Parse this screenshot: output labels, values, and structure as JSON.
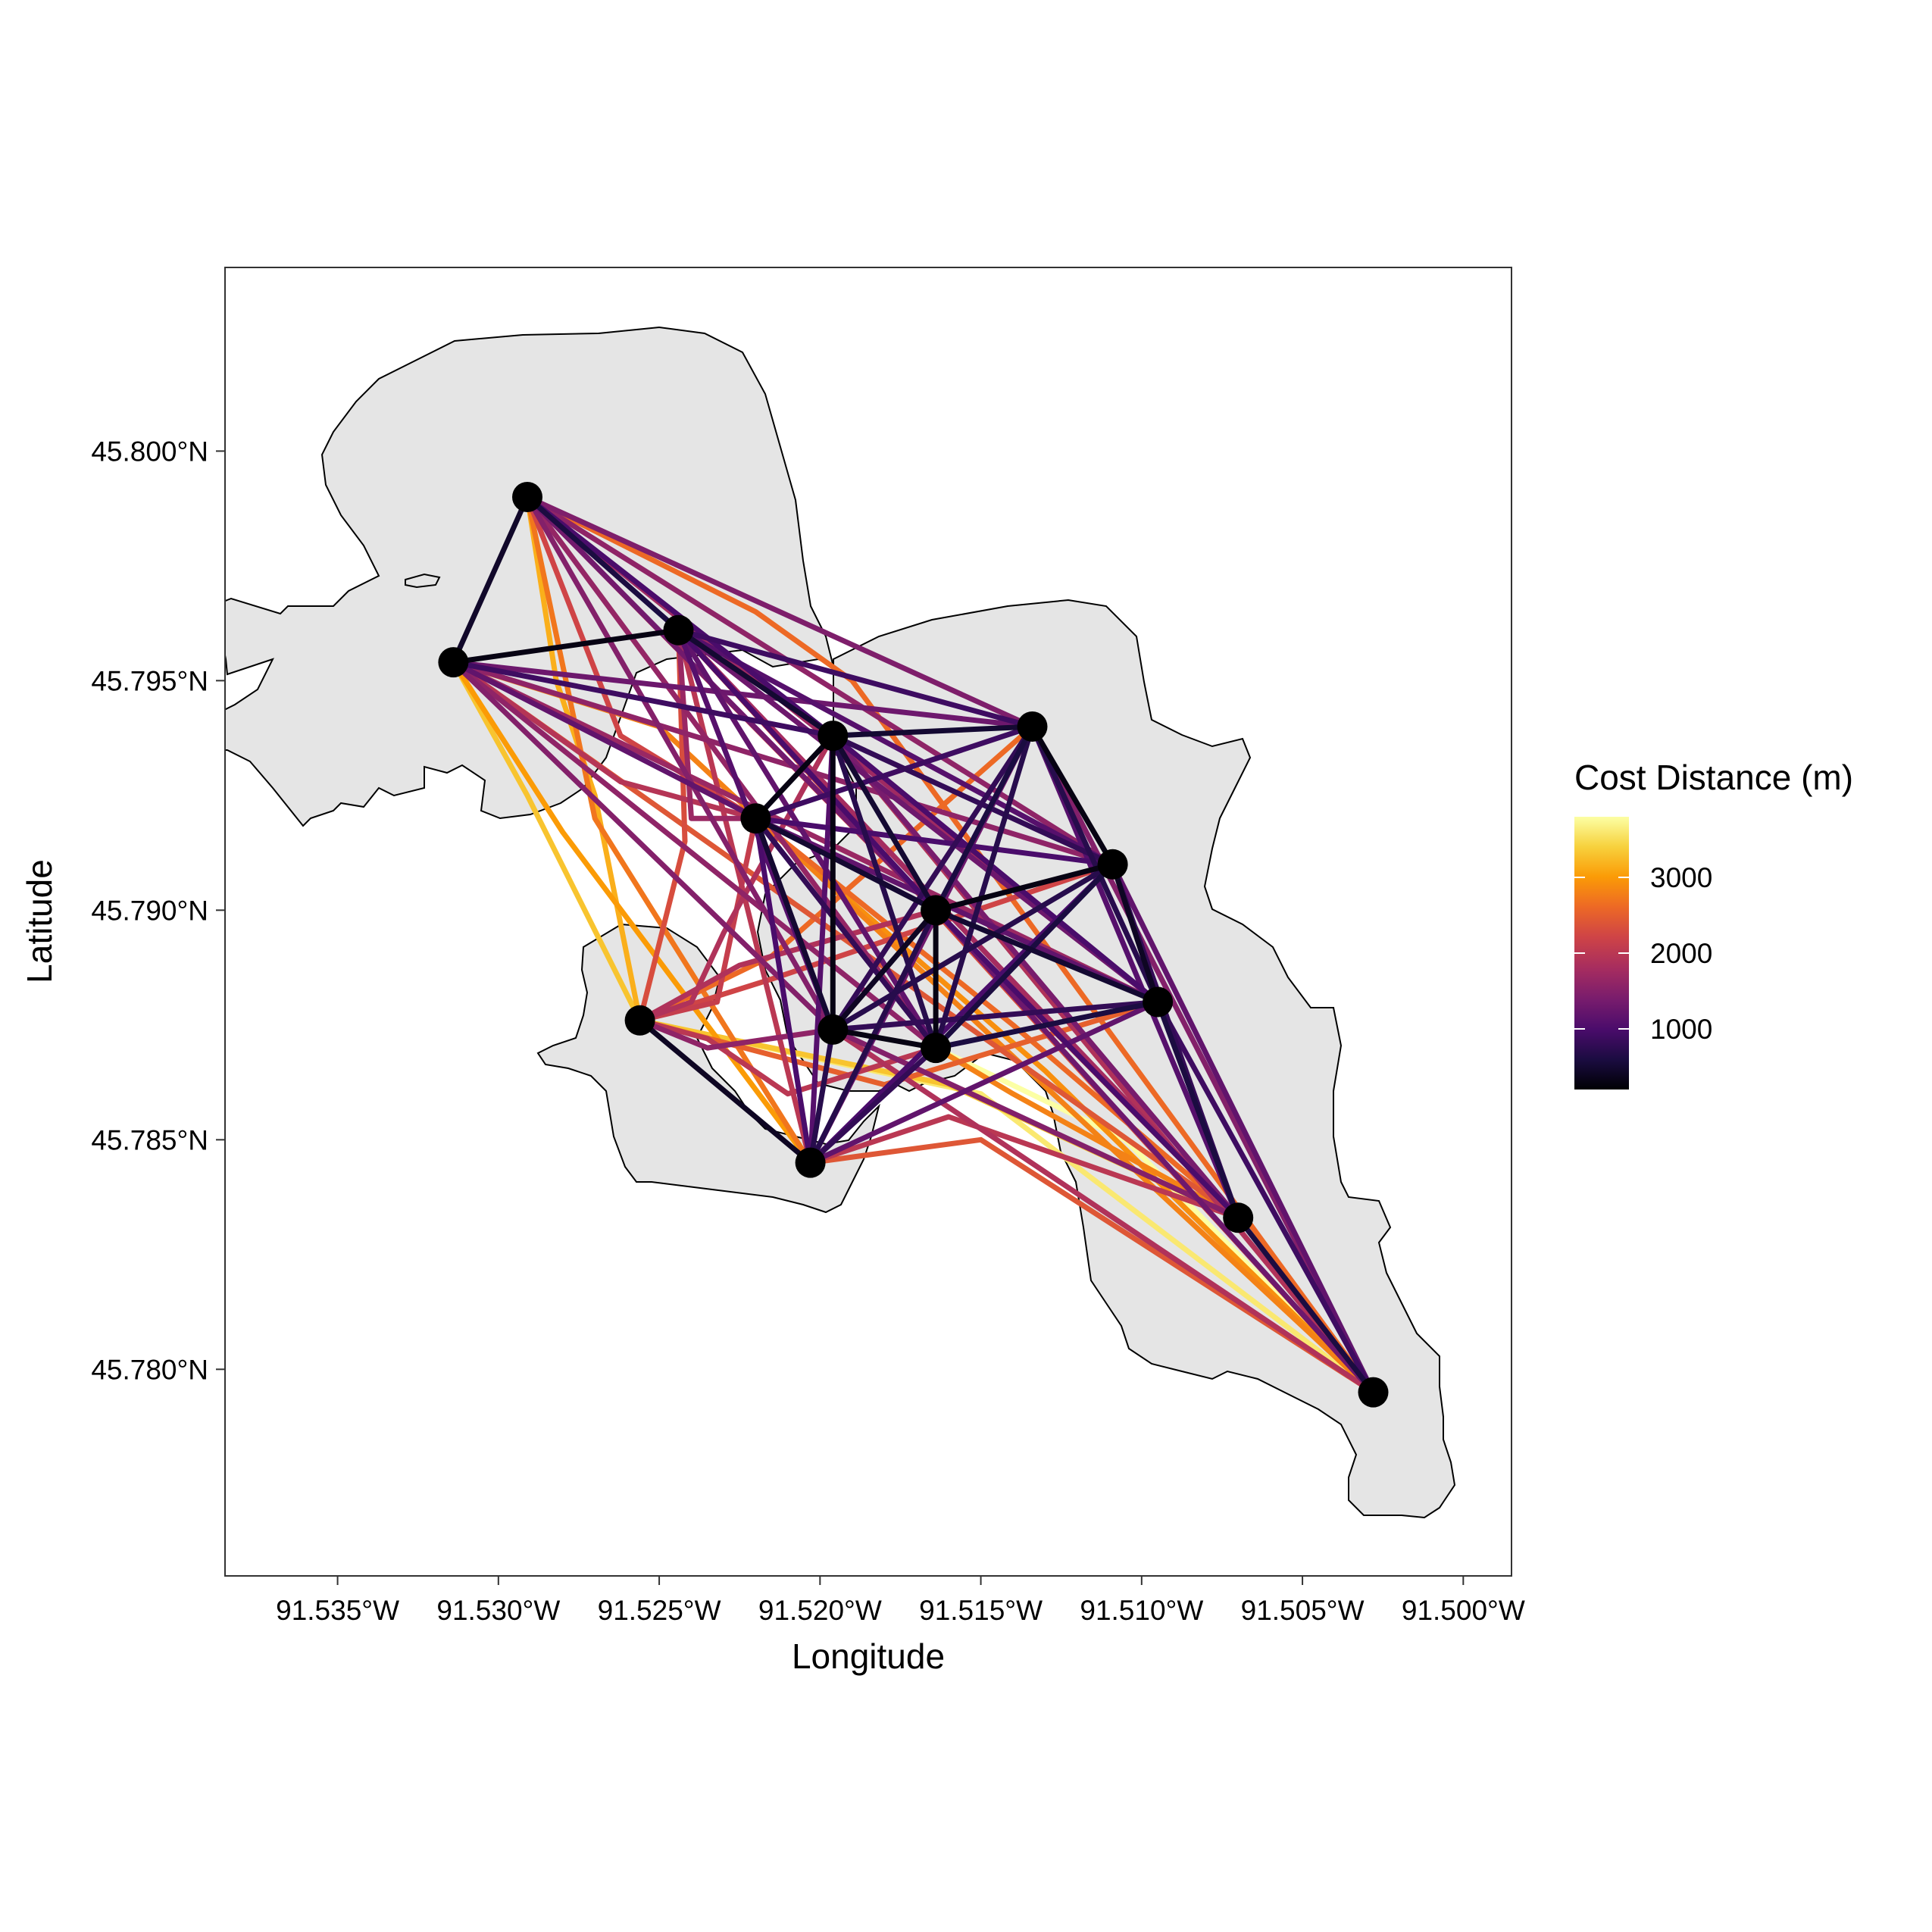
{
  "chart_data": {
    "type": "map",
    "xlabel": "Longitude",
    "ylabel": "Latitude",
    "xlim": [
      -91.5385,
      -91.4985
    ],
    "ylim": [
      45.7755,
      45.804
    ],
    "x_ticks": [
      -91.535,
      -91.53,
      -91.525,
      -91.52,
      -91.515,
      -91.51,
      -91.505,
      -91.5
    ],
    "x_tick_labels": [
      "91.535°W",
      "91.530°W",
      "91.525°W",
      "91.520°W",
      "91.515°W",
      "91.510°W",
      "91.505°W",
      "91.500°W"
    ],
    "y_ticks": [
      45.78,
      45.785,
      45.79,
      45.795,
      45.8
    ],
    "y_tick_labels": [
      "45.780°N",
      "45.785°N",
      "45.790°N",
      "45.795°N",
      "45.800°N"
    ],
    "legend": {
      "title": "Cost Distance (m)",
      "position": "right",
      "range": [
        200,
        3800
      ],
      "breaks": [
        1000,
        2000,
        3000
      ],
      "break_labels": [
        "1000",
        "2000",
        "3000"
      ]
    },
    "colors": {
      "land": "#e5e5e5",
      "panel_border": "#333333",
      "node": "#000000",
      "palette": [
        "#000004",
        "#1b0c41",
        "#4a0c6b",
        "#781c6d",
        "#a52c60",
        "#cf4446",
        "#ed6925",
        "#fb9b06",
        "#f7d13d",
        "#fcffa4"
      ]
    },
    "grid": false,
    "nodes": [
      {
        "lon": -91.5291,
        "lat": 45.799
      },
      {
        "lon": -91.5314,
        "lat": 45.7954
      },
      {
        "lon": -91.5244,
        "lat": 45.7961
      },
      {
        "lon": -91.5196,
        "lat": 45.7938
      },
      {
        "lon": -91.5134,
        "lat": 45.794
      },
      {
        "lon": -91.522,
        "lat": 45.792
      },
      {
        "lon": -91.5109,
        "lat": 45.791
      },
      {
        "lon": -91.5164,
        "lat": 45.79
      },
      {
        "lon": -91.5095,
        "lat": 45.788
      },
      {
        "lon": -91.5256,
        "lat": 45.7876
      },
      {
        "lon": -91.5196,
        "lat": 45.7874
      },
      {
        "lon": -91.5164,
        "lat": 45.787
      },
      {
        "lon": -91.5203,
        "lat": 45.7845
      },
      {
        "lon": -91.507,
        "lat": 45.7833
      },
      {
        "lon": -91.5028,
        "lat": 45.7795
      }
    ],
    "paths": [
      {
        "from": 0,
        "to": 1,
        "cost": 450
      },
      {
        "from": 0,
        "to": 2,
        "cost": 600
      },
      {
        "from": 0,
        "to": 3,
        "cost": 1000
      },
      {
        "from": 0,
        "to": 4,
        "cost": 1450
      },
      {
        "from": 0,
        "to": 5,
        "cost": 2200,
        "via": [
          [
            -91.5262,
            45.7938
          ]
        ]
      },
      {
        "from": 0,
        "to": 6,
        "cost": 1600
      },
      {
        "from": 0,
        "to": 7,
        "cost": 1350
      },
      {
        "from": 0,
        "to": 8,
        "cost": 1750
      },
      {
        "from": 0,
        "to": 9,
        "cost": 3150,
        "via": [
          [
            -91.5282,
            45.795
          ],
          [
            -91.527,
            45.7925
          ]
        ]
      },
      {
        "from": 0,
        "to": 10,
        "cost": 1500
      },
      {
        "from": 0,
        "to": 11,
        "cost": 1650
      },
      {
        "from": 0,
        "to": 12,
        "cost": 2700,
        "via": [
          [
            -91.527,
            45.792
          ]
        ]
      },
      {
        "from": 0,
        "to": 13,
        "cost": 2200
      },
      {
        "from": 0,
        "to": 14,
        "cost": 2600,
        "via": [
          [
            -91.522,
            45.7965
          ],
          [
            -91.519,
            45.795
          ]
        ]
      },
      {
        "from": 1,
        "to": 2,
        "cost": 300
      },
      {
        "from": 1,
        "to": 3,
        "cost": 900
      },
      {
        "from": 1,
        "to": 4,
        "cost": 1300
      },
      {
        "from": 1,
        "to": 5,
        "cost": 1950,
        "via": [
          [
            -91.5262,
            45.7928
          ]
        ]
      },
      {
        "from": 1,
        "to": 6,
        "cost": 1600
      },
      {
        "from": 1,
        "to": 7,
        "cost": 1200
      },
      {
        "from": 1,
        "to": 8,
        "cost": 1700
      },
      {
        "from": 1,
        "to": 9,
        "cost": 3300,
        "via": [
          [
            -91.5291,
            45.7925
          ]
        ]
      },
      {
        "from": 1,
        "to": 10,
        "cost": 1500
      },
      {
        "from": 1,
        "to": 11,
        "cost": 1600
      },
      {
        "from": 1,
        "to": 12,
        "cost": 3000,
        "via": [
          [
            -91.528,
            45.7917
          ]
        ]
      },
      {
        "from": 1,
        "to": 13,
        "cost": 2400
      },
      {
        "from": 1,
        "to": 14,
        "cost": 2800,
        "via": [
          [
            -91.525,
            45.794
          ]
        ]
      },
      {
        "from": 2,
        "to": 3,
        "cost": 500
      },
      {
        "from": 2,
        "to": 4,
        "cost": 900
      },
      {
        "from": 2,
        "to": 5,
        "cost": 1700,
        "via": [
          [
            -91.524,
            45.792
          ]
        ]
      },
      {
        "from": 2,
        "to": 6,
        "cost": 1100
      },
      {
        "from": 2,
        "to": 7,
        "cost": 1000
      },
      {
        "from": 2,
        "to": 8,
        "cost": 1300
      },
      {
        "from": 2,
        "to": 9,
        "cost": 2300,
        "via": [
          [
            -91.5242,
            45.7915
          ]
        ]
      },
      {
        "from": 2,
        "to": 10,
        "cost": 1100
      },
      {
        "from": 2,
        "to": 11,
        "cost": 1200
      },
      {
        "from": 2,
        "to": 12,
        "cost": 2000
      },
      {
        "from": 2,
        "to": 13,
        "cost": 1800
      },
      {
        "from": 2,
        "to": 14,
        "cost": 2300
      },
      {
        "from": 3,
        "to": 4,
        "cost": 500
      },
      {
        "from": 3,
        "to": 5,
        "cost": 300
      },
      {
        "from": 3,
        "to": 6,
        "cost": 800
      },
      {
        "from": 3,
        "to": 7,
        "cost": 500
      },
      {
        "from": 3,
        "to": 8,
        "cost": 1000
      },
      {
        "from": 3,
        "to": 9,
        "cost": 1900,
        "via": [
          [
            -91.523,
            45.7895
          ],
          [
            -91.524,
            45.788
          ]
        ]
      },
      {
        "from": 3,
        "to": 10,
        "cost": 300
      },
      {
        "from": 3,
        "to": 11,
        "cost": 700
      },
      {
        "from": 3,
        "to": 12,
        "cost": 1100
      },
      {
        "from": 3,
        "to": 13,
        "cost": 1400
      },
      {
        "from": 3,
        "to": 14,
        "cost": 1900
      },
      {
        "from": 4,
        "to": 5,
        "cost": 900
      },
      {
        "from": 4,
        "to": 6,
        "cost": 300
      },
      {
        "from": 4,
        "to": 7,
        "cost": 600
      },
      {
        "from": 4,
        "to": 8,
        "cost": 700
      },
      {
        "from": 4,
        "to": 9,
        "cost": 2600,
        "via": [
          [
            -91.5215,
            45.789
          ]
        ]
      },
      {
        "from": 4,
        "to": 10,
        "cost": 800
      },
      {
        "from": 4,
        "to": 11,
        "cost": 700
      },
      {
        "from": 4,
        "to": 12,
        "cost": 1300
      },
      {
        "from": 4,
        "to": 13,
        "cost": 1100
      },
      {
        "from": 4,
        "to": 14,
        "cost": 1500
      },
      {
        "from": 5,
        "to": 6,
        "cost": 1000
      },
      {
        "from": 5,
        "to": 7,
        "cost": 500
      },
      {
        "from": 5,
        "to": 8,
        "cost": 1200
      },
      {
        "from": 5,
        "to": 9,
        "cost": 2100,
        "via": [
          [
            -91.5232,
            45.788
          ]
        ]
      },
      {
        "from": 5,
        "to": 10,
        "cost": 500
      },
      {
        "from": 5,
        "to": 11,
        "cost": 800
      },
      {
        "from": 5,
        "to": 12,
        "cost": 1000
      },
      {
        "from": 5,
        "to": 13,
        "cost": 2600,
        "via": [
          [
            -91.514,
            45.7875
          ]
        ]
      },
      {
        "from": 5,
        "to": 14,
        "cost": 2900,
        "via": [
          [
            -91.513,
            45.7865
          ]
        ]
      },
      {
        "from": 6,
        "to": 7,
        "cost": 300
      },
      {
        "from": 6,
        "to": 8,
        "cost": 400
      },
      {
        "from": 6,
        "to": 9,
        "cost": 2200,
        "via": [
          [
            -91.5215,
            45.7885
          ]
        ]
      },
      {
        "from": 6,
        "to": 10,
        "cost": 700
      },
      {
        "from": 6,
        "to": 11,
        "cost": 600
      },
      {
        "from": 6,
        "to": 12,
        "cost": 1000
      },
      {
        "from": 6,
        "to": 13,
        "cost": 800
      },
      {
        "from": 6,
        "to": 14,
        "cost": 1200
      },
      {
        "from": 7,
        "to": 8,
        "cost": 500
      },
      {
        "from": 7,
        "to": 9,
        "cost": 1900,
        "via": [
          [
            -91.5225,
            45.7888
          ]
        ]
      },
      {
        "from": 7,
        "to": 10,
        "cost": 400
      },
      {
        "from": 7,
        "to": 11,
        "cost": 300
      },
      {
        "from": 7,
        "to": 12,
        "cost": 700
      },
      {
        "from": 7,
        "to": 13,
        "cost": 1000
      },
      {
        "from": 7,
        "to": 14,
        "cost": 1300
      },
      {
        "from": 8,
        "to": 9,
        "cost": 2500,
        "via": [
          [
            -91.518,
            45.7862
          ]
        ]
      },
      {
        "from": 8,
        "to": 10,
        "cost": 800
      },
      {
        "from": 8,
        "to": 11,
        "cost": 600
      },
      {
        "from": 8,
        "to": 12,
        "cost": 1200
      },
      {
        "from": 8,
        "to": 13,
        "cost": 600
      },
      {
        "from": 8,
        "to": 14,
        "cost": 900
      },
      {
        "from": 9,
        "to": 10,
        "cost": 1600,
        "via": [
          [
            -91.5235,
            45.787
          ]
        ]
      },
      {
        "from": 9,
        "to": 11,
        "cost": 2000,
        "via": [
          [
            -91.5235,
            45.7872
          ],
          [
            -91.521,
            45.786
          ]
        ]
      },
      {
        "from": 9,
        "to": 12,
        "cost": 400
      },
      {
        "from": 9,
        "to": 13,
        "cost": 3300,
        "via": [
          [
            -91.516,
            45.7862
          ]
        ]
      },
      {
        "from": 9,
        "to": 14,
        "cost": 3600,
        "via": [
          [
            -91.515,
            45.786
          ]
        ]
      },
      {
        "from": 10,
        "to": 11,
        "cost": 300
      },
      {
        "from": 10,
        "to": 12,
        "cost": 700
      },
      {
        "from": 10,
        "to": 13,
        "cost": 1500
      },
      {
        "from": 10,
        "to": 14,
        "cost": 1900
      },
      {
        "from": 11,
        "to": 12,
        "cost": 800
      },
      {
        "from": 11,
        "to": 13,
        "cost": 2800,
        "via": [
          [
            -91.514,
            45.786
          ]
        ]
      },
      {
        "from": 11,
        "to": 14,
        "cost": 3800,
        "via": [
          [
            -91.5105,
            45.785
          ]
        ]
      },
      {
        "from": 12,
        "to": 13,
        "cost": 2000,
        "via": [
          [
            -91.516,
            45.7855
          ]
        ]
      },
      {
        "from": 12,
        "to": 14,
        "cost": 2400,
        "via": [
          [
            -91.515,
            45.785
          ]
        ]
      },
      {
        "from": 13,
        "to": 14,
        "cost": 600
      }
    ]
  }
}
